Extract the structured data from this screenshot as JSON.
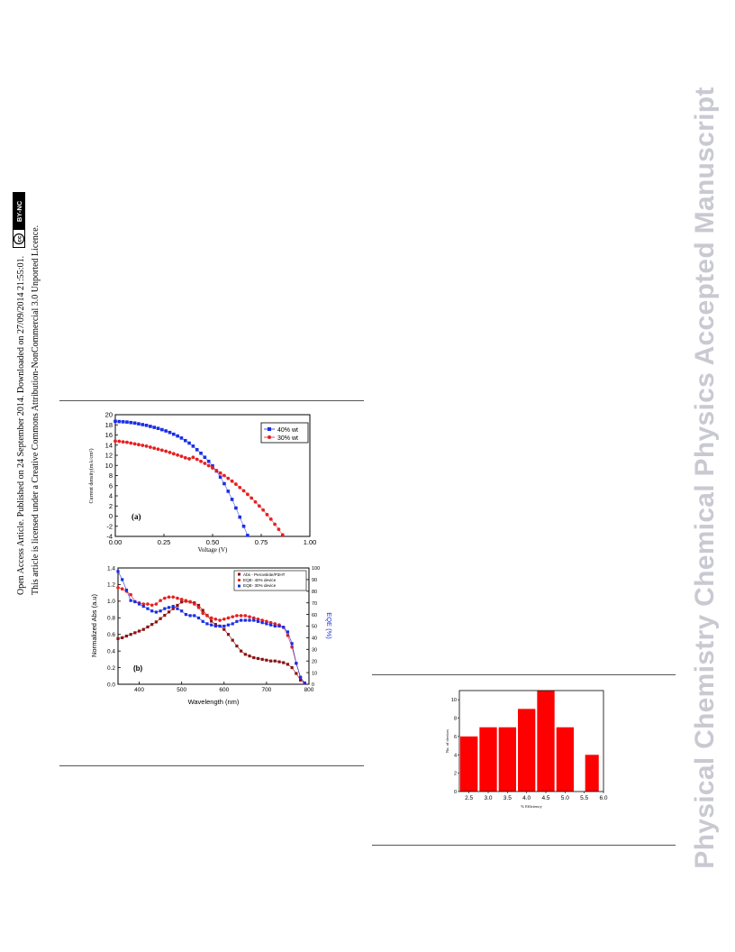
{
  "side_note": {
    "line1": "Open Access Article. Published on 24 September 2014. Downloaded on 27/09/2014 21:55:01.",
    "line2": "This article is licensed under a Creative Commons Attribution-NonCommercial 3.0 Unported Licence.",
    "license_badge": {
      "cc": "cc",
      "text": "BY-NC"
    }
  },
  "watermark": "Physical Chemistry Chemical Physics Accepted Manuscript",
  "chart_data": [
    {
      "type": "scatter",
      "panel_label": "(a)",
      "xlabel": "Voltage (V)",
      "ylabel": "Current density(mA/cm²)",
      "xlim": [
        0,
        1.0
      ],
      "ylim": [
        -4,
        20
      ],
      "xticks": [
        "0.00",
        "0.25",
        "0.50",
        "0.75",
        "1.00"
      ],
      "yticks": [
        "-4",
        "-2",
        "0",
        "2",
        "4",
        "6",
        "8",
        "10",
        "12",
        "14",
        "16",
        "18",
        "20"
      ],
      "legend": "top-right",
      "series": [
        {
          "name": "40% wt",
          "color": "#1a2ee6",
          "x": [
            0,
            0.02,
            0.04,
            0.06,
            0.08,
            0.1,
            0.12,
            0.14,
            0.16,
            0.18,
            0.2,
            0.22,
            0.24,
            0.26,
            0.28,
            0.3,
            0.32,
            0.34,
            0.36,
            0.38,
            0.4,
            0.42,
            0.44,
            0.46,
            0.48,
            0.5,
            0.52,
            0.54,
            0.56,
            0.58,
            0.6,
            0.62,
            0.64,
            0.66,
            0.68
          ],
          "y": [
            18.7,
            18.65,
            18.6,
            18.55,
            18.45,
            18.35,
            18.2,
            18.05,
            17.9,
            17.7,
            17.5,
            17.3,
            17.05,
            16.8,
            16.5,
            16.15,
            15.8,
            15.4,
            14.9,
            14.4,
            13.8,
            13.1,
            12.4,
            11.6,
            10.8,
            9.9,
            8.9,
            7.7,
            6.4,
            4.9,
            3.3,
            1.6,
            -0.2,
            -2.0,
            -3.8
          ]
        },
        {
          "name": "30% wt",
          "color": "#e62020",
          "x": [
            0,
            0.02,
            0.04,
            0.06,
            0.08,
            0.1,
            0.12,
            0.14,
            0.16,
            0.18,
            0.2,
            0.22,
            0.24,
            0.26,
            0.28,
            0.3,
            0.32,
            0.34,
            0.36,
            0.38,
            0.4,
            0.42,
            0.44,
            0.46,
            0.48,
            0.5,
            0.52,
            0.54,
            0.56,
            0.58,
            0.6,
            0.62,
            0.64,
            0.66,
            0.68,
            0.7,
            0.72,
            0.74,
            0.76,
            0.78,
            0.8,
            0.82,
            0.84,
            0.86
          ],
          "y": [
            14.8,
            14.75,
            14.65,
            14.55,
            14.4,
            14.25,
            14.1,
            13.95,
            13.8,
            13.6,
            13.4,
            13.2,
            13.0,
            12.8,
            12.55,
            12.3,
            12.05,
            11.8,
            11.5,
            11.3,
            11.6,
            11.2,
            10.8,
            10.4,
            9.95,
            9.5,
            9.0,
            8.5,
            8.0,
            7.45,
            6.9,
            6.3,
            5.65,
            5.0,
            4.3,
            3.55,
            2.8,
            2.0,
            1.2,
            0.3,
            -0.6,
            -1.6,
            -2.6,
            -3.7
          ]
        }
      ]
    },
    {
      "type": "scatter",
      "panel_label": "(b)",
      "xlabel": "Wavelength (nm)",
      "ylabel": "Normalized Abs (a.u)",
      "y2label": "EQE (%)",
      "xlim": [
        350,
        800
      ],
      "ylim": [
        0,
        1.4
      ],
      "y2lim": [
        0,
        100
      ],
      "xticks": [
        "400",
        "500",
        "600",
        "700",
        "800"
      ],
      "yticks": [
        "0.0",
        "0.2",
        "0.4",
        "0.6",
        "0.8",
        "1.0",
        "1.2",
        "1.4"
      ],
      "y2ticks": [
        "0",
        "10",
        "20",
        "30",
        "40",
        "50",
        "60",
        "70",
        "80",
        "90",
        "100"
      ],
      "legend": "top-right",
      "series": [
        {
          "name": "Abs - Perovskite/P3HT",
          "color": "#8b1212",
          "axis": "left",
          "x": [
            350,
            360,
            370,
            380,
            390,
            400,
            410,
            420,
            430,
            440,
            450,
            460,
            470,
            480,
            490,
            500,
            510,
            520,
            530,
            540,
            550,
            560,
            570,
            580,
            590,
            600,
            610,
            620,
            630,
            640,
            650,
            660,
            670,
            680,
            690,
            700,
            710,
            720,
            730,
            740,
            750,
            760,
            770,
            780,
            790
          ],
          "y": [
            0.55,
            0.56,
            0.58,
            0.6,
            0.62,
            0.64,
            0.66,
            0.69,
            0.72,
            0.75,
            0.79,
            0.83,
            0.87,
            0.91,
            0.95,
            0.99,
            1.0,
            0.99,
            0.98,
            0.95,
            0.89,
            0.83,
            0.76,
            0.72,
            0.7,
            0.66,
            0.6,
            0.53,
            0.46,
            0.4,
            0.36,
            0.34,
            0.32,
            0.31,
            0.3,
            0.29,
            0.28,
            0.28,
            0.27,
            0.26,
            0.24,
            0.2,
            0.13,
            0.05,
            0.01
          ]
        },
        {
          "name": "EQE- 40% device",
          "color": "#e62020",
          "axis": "right",
          "x": [
            350,
            360,
            370,
            380,
            390,
            400,
            410,
            420,
            430,
            440,
            450,
            460,
            470,
            480,
            490,
            500,
            510,
            520,
            530,
            540,
            550,
            560,
            570,
            580,
            590,
            600,
            610,
            620,
            630,
            640,
            650,
            660,
            670,
            680,
            690,
            700,
            710,
            720,
            730,
            740,
            750,
            760,
            770,
            780,
            790
          ],
          "y": [
            83,
            82,
            80,
            77,
            71,
            70,
            69,
            69,
            68,
            69,
            72,
            74,
            75,
            75,
            74,
            73,
            72,
            71,
            69,
            66,
            61,
            59,
            57,
            56,
            55,
            56,
            57,
            58,
            59,
            59,
            59,
            58,
            57,
            56,
            55,
            54,
            53,
            52,
            51,
            49,
            42,
            32,
            18,
            6,
            1
          ]
        },
        {
          "name": "EQE- 30% device",
          "color": "#1a2ee6",
          "axis": "right",
          "x": [
            350,
            360,
            370,
            380,
            390,
            400,
            410,
            420,
            430,
            440,
            450,
            460,
            470,
            480,
            490,
            500,
            510,
            520,
            530,
            540,
            550,
            560,
            570,
            580,
            590,
            600,
            610,
            620,
            630,
            640,
            650,
            660,
            670,
            680,
            690,
            700,
            710,
            720,
            730,
            740,
            750,
            760,
            770,
            780,
            790
          ],
          "y": [
            97,
            90,
            81,
            72,
            71,
            69,
            67,
            65,
            63,
            62,
            63,
            65,
            66,
            67,
            65,
            63,
            60,
            59,
            59,
            57,
            54,
            52,
            51,
            50,
            50,
            50,
            51,
            52,
            54,
            55,
            55,
            55,
            55,
            54,
            53,
            52,
            51,
            50,
            50,
            49,
            45,
            35,
            18,
            6,
            1
          ]
        }
      ]
    },
    {
      "type": "bar",
      "xlabel": "% Efficiency",
      "ylabel": "No. of devices",
      "xlim": [
        2.25,
        6.0
      ],
      "ylim": [
        0,
        11
      ],
      "xticks": [
        "2.5",
        "3.0",
        "3.5",
        "4.0",
        "4.5",
        "5.0",
        "5.5",
        "6.0"
      ],
      "yticks": [
        "0",
        "2",
        "4",
        "6",
        "8",
        "10"
      ],
      "color": "#ff0000",
      "bins": [
        [
          2.25,
          2.75
        ],
        [
          2.75,
          3.25
        ],
        [
          3.25,
          3.75
        ],
        [
          3.75,
          4.25
        ],
        [
          4.25,
          4.75
        ],
        [
          4.75,
          5.25
        ],
        [
          5.5,
          5.9
        ]
      ],
      "values": [
        6,
        7,
        7,
        9,
        11,
        7,
        4
      ]
    }
  ]
}
